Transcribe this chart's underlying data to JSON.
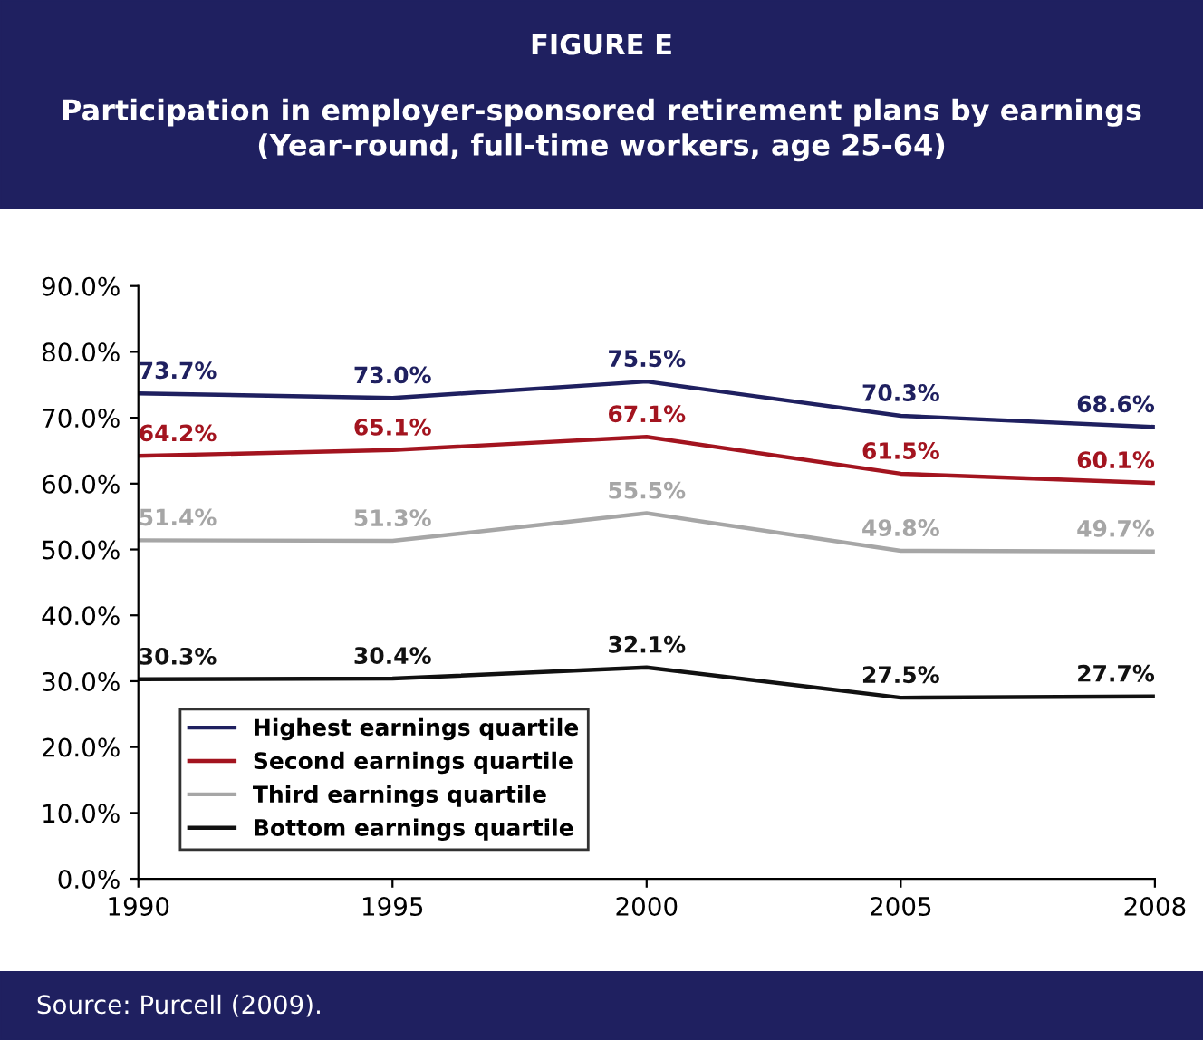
{
  "chart_data": {
    "type": "line",
    "title": "FIGURE E",
    "subtitle": "Participation in employer-sponsored retirement plans by earnings\n(Year-round, full-time workers, age 25-64)",
    "annotations": [
      "Source: Purcell (2009)."
    ],
    "categories": [
      "1990",
      "1995",
      "2000",
      "2005",
      "2008"
    ],
    "series": [
      {
        "name": "Highest earnings quartile",
        "color": "#1f2060",
        "values": [
          73.7,
          73.0,
          75.5,
          70.3,
          68.6
        ],
        "value_labels": [
          "73.7%",
          "73.0%",
          "75.5%",
          "70.3%",
          "68.6%"
        ]
      },
      {
        "name": "Second earnings quartile",
        "color": "#a3141f",
        "values": [
          64.2,
          65.1,
          67.1,
          61.5,
          60.1
        ],
        "value_labels": [
          "64.2%",
          "65.1%",
          "67.1%",
          "61.5%",
          "60.1%"
        ]
      },
      {
        "name": "Third earnings quartile",
        "color": "#a6a6a6",
        "values": [
          51.4,
          51.3,
          55.5,
          49.8,
          49.7
        ],
        "value_labels": [
          "51.4%",
          "51.3%",
          "55.5%",
          "49.8%",
          "49.7%"
        ]
      },
      {
        "name": "Bottom earnings quartile",
        "color": "#111111",
        "values": [
          30.3,
          30.4,
          32.1,
          27.5,
          27.7
        ],
        "value_labels": [
          "30.3%",
          "30.4%",
          "32.1%",
          "27.5%",
          "27.7%"
        ]
      }
    ],
    "ylim": [
      0,
      90
    ],
    "yticks": [
      {
        "value": 0,
        "label": "0.0%"
      },
      {
        "value": 10,
        "label": "10.0%"
      },
      {
        "value": 20,
        "label": "20.0%"
      },
      {
        "value": 30,
        "label": "30.0%"
      },
      {
        "value": 40,
        "label": "40.0%"
      },
      {
        "value": 50,
        "label": "50.0%"
      },
      {
        "value": 60,
        "label": "60.0%"
      },
      {
        "value": 70,
        "label": "70.0%"
      },
      {
        "value": 80,
        "label": "80.0%"
      },
      {
        "value": 90,
        "label": "90.0%"
      }
    ],
    "grid": false,
    "legend": "bottom left",
    "marker": "none",
    "line_style": "solid"
  }
}
